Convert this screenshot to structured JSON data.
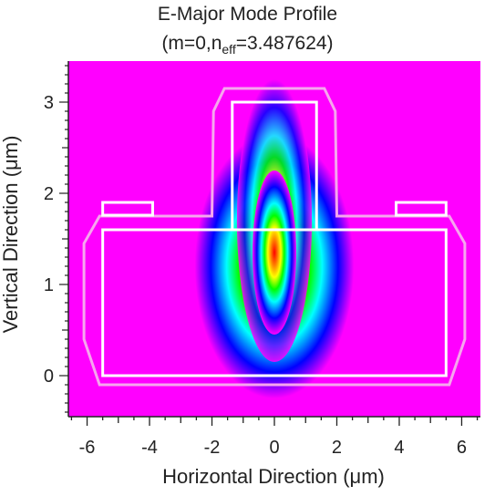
{
  "chart_data": {
    "type": "heatmap",
    "title": "E-Major Mode Profile",
    "subtitle_prefix": "(m=0,n",
    "subtitle_sub": "eff",
    "subtitle_suffix": "=3.487624)",
    "xlabel": "Horizontal Direction (μm)",
    "ylabel": "Vertical Direction (μm)",
    "xlim": [
      -6.6,
      6.6
    ],
    "ylim": [
      -0.45,
      3.45
    ],
    "x_ticks": [
      -6,
      -4,
      -2,
      0,
      2,
      4,
      6
    ],
    "y_ticks": [
      0,
      1,
      2,
      3
    ],
    "colormap": [
      "#ff00ff",
      "#0000ff",
      "#00ffff",
      "#00ff00",
      "#ffff00",
      "#ff0000"
    ],
    "background_color": "#ff00ff",
    "field_peak": {
      "x": 0.0,
      "y": 1.35
    },
    "structures": [
      {
        "name": "slab",
        "x": [
          -5.5,
          5.5
        ],
        "y": [
          0.0,
          1.6
        ]
      },
      {
        "name": "rib",
        "x": [
          -1.35,
          1.35
        ],
        "y": [
          1.6,
          3.0
        ]
      },
      {
        "name": "left-pad",
        "x": [
          -5.5,
          -3.9
        ],
        "y": [
          1.76,
          1.9
        ]
      },
      {
        "name": "right-pad",
        "x": [
          3.9,
          5.5
        ],
        "y": [
          1.76,
          1.9
        ]
      }
    ],
    "outline": [
      [
        -5.6,
        -0.1
      ],
      [
        5.6,
        -0.1
      ],
      [
        6.1,
        0.4
      ],
      [
        6.1,
        1.45
      ],
      [
        5.6,
        1.75
      ],
      [
        2.0,
        1.75
      ],
      [
        1.95,
        2.9
      ],
      [
        1.6,
        3.15
      ],
      [
        -1.6,
        3.15
      ],
      [
        -1.95,
        2.9
      ],
      [
        -2.0,
        1.75
      ],
      [
        -5.6,
        1.75
      ],
      [
        -6.1,
        1.45
      ],
      [
        -6.1,
        0.4
      ]
    ]
  }
}
